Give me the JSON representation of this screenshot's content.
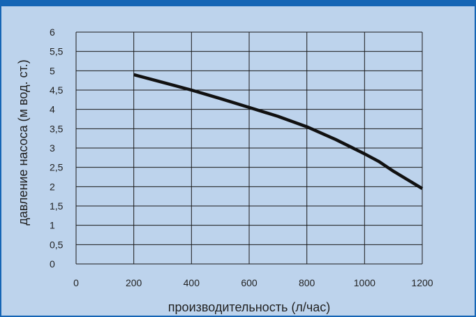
{
  "colors": {
    "frame": "#1565b5",
    "background": "#bdd3ec",
    "grid": "#1a1a1a",
    "curve": "#111111"
  },
  "chart_data": {
    "type": "line",
    "xlabel": "производительность (л/час)",
    "ylabel": "давление насоса (м вод. ст.)",
    "xlim": [
      0,
      1200
    ],
    "ylim": [
      0,
      6
    ],
    "x_ticks": [
      0,
      200,
      400,
      600,
      800,
      1000,
      1200
    ],
    "x_tick_labels": [
      "0",
      "200",
      "400",
      "600",
      "800",
      "1000",
      "1200"
    ],
    "y_ticks": [
      0,
      0.5,
      1,
      1.5,
      2,
      2.5,
      3,
      3.5,
      4,
      4.5,
      5,
      5.5,
      6
    ],
    "y_tick_labels": [
      "0",
      "0,5",
      "1",
      "1,5",
      "2",
      "2,5",
      "3",
      "3,5",
      "4",
      "4,5",
      "5",
      "5,5",
      "6"
    ],
    "grid": true,
    "series": [
      {
        "x": [
          200,
          300,
          400,
          500,
          600,
          700,
          800,
          900,
          1000,
          1050,
          1100,
          1200
        ],
        "y": [
          4.9,
          4.7,
          4.5,
          4.28,
          4.05,
          3.82,
          3.55,
          3.22,
          2.85,
          2.65,
          2.4,
          1.95
        ]
      }
    ]
  }
}
